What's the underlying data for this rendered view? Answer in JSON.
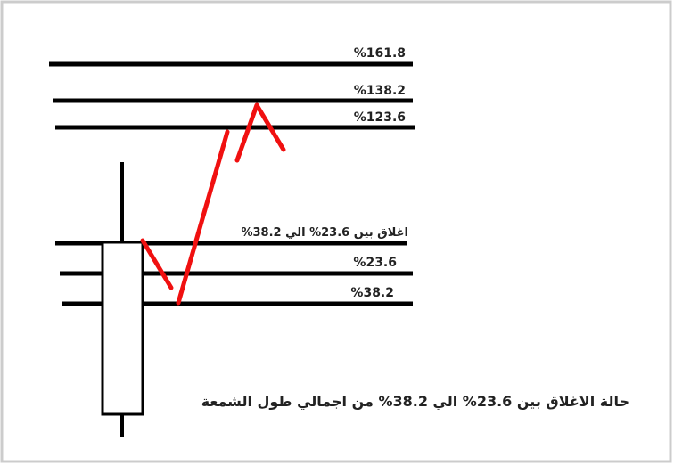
{
  "levels": [
    {
      "label": "%161.8"
    },
    {
      "label": "%138.2"
    },
    {
      "label": "%123.6"
    },
    {
      "label": "اغلاق بين 23.6% الي 38.2%"
    },
    {
      "label": "%23.6"
    },
    {
      "label": "%38.2"
    }
  ],
  "caption": "حالة الاغلاق بين 23.6% الي 38.2% من اجمالي طول الشمعة"
}
